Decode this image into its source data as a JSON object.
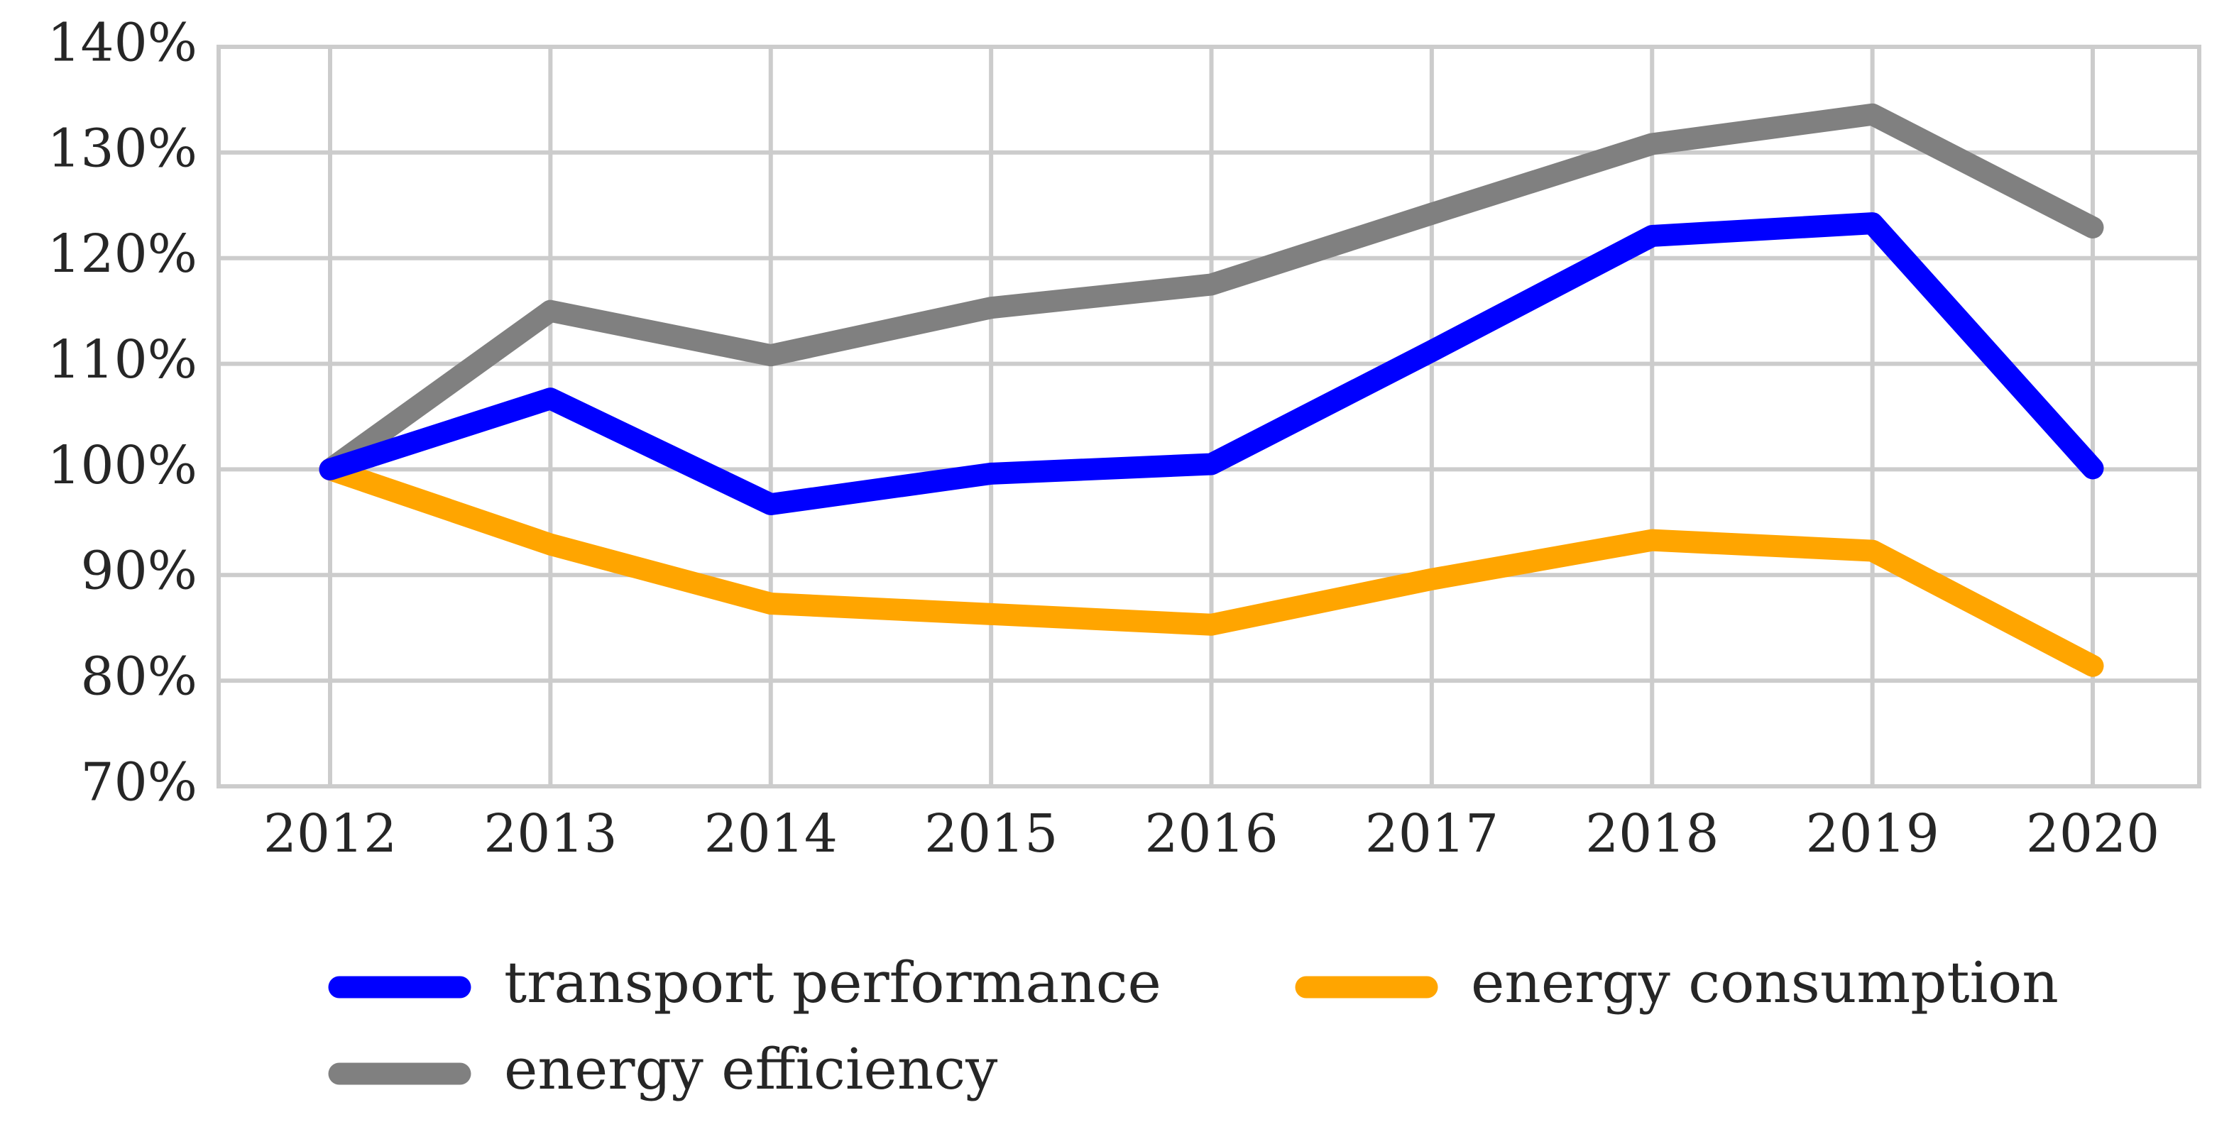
{
  "chart_data": {
    "type": "line",
    "title": "",
    "xlabel": "",
    "ylabel": "",
    "x": [
      "2012",
      "2013",
      "2014",
      "2015",
      "2016",
      "2017",
      "2018",
      "2019",
      "2020"
    ],
    "y_ticks": [
      "70%",
      "80%",
      "90%",
      "100%",
      "110%",
      "120%",
      "130%",
      "140%"
    ],
    "y_tick_values": [
      70,
      80,
      90,
      100,
      110,
      120,
      130,
      140
    ],
    "ylim": [
      70,
      140
    ],
    "grid": true,
    "legend_position": "bottom",
    "series": [
      {
        "name": "transport performance",
        "color": "#0000ff",
        "values": [
          100,
          106.7,
          96.7,
          99.6,
          100.5,
          111.2,
          122.1,
          123.3,
          100.1
        ]
      },
      {
        "name": "energy consumption",
        "color": "#ffa500",
        "values": [
          100,
          92.9,
          87.3,
          86.3,
          85.3,
          89.6,
          93.3,
          92.3,
          81.4
        ]
      },
      {
        "name": "energy efficiency",
        "color": "#808080",
        "values": [
          100,
          115,
          110.8,
          115.3,
          117.5,
          124.2,
          130.8,
          133.6,
          122.9
        ]
      }
    ]
  }
}
